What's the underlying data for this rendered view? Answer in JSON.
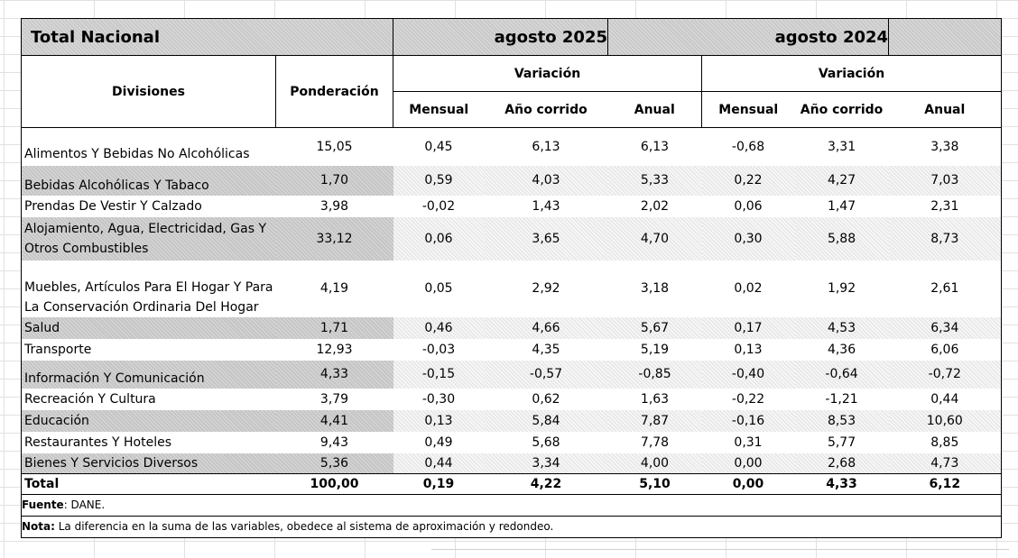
{
  "banner": {
    "title": "Total Nacional",
    "period_current": "agosto  2025",
    "period_previous": "agosto   2024"
  },
  "headers": {
    "divisions": "Divisiones",
    "weight": "Ponderación",
    "variation_current": "Variación",
    "variation_previous": "Variación",
    "monthly": "Mensual",
    "year_to_date": "Año corrido",
    "annual": "Anual"
  },
  "rows": [
    {
      "label": "Alimentos Y Bebidas No Alcohólicas",
      "weight": "15,05",
      "m25": "0,45",
      "ac25": "6,13",
      "a25": "6,13",
      "m24": "-0,68",
      "ac24": "3,31",
      "a24": "3,38"
    },
    {
      "label": "Bebidas Alcohólicas Y Tabaco",
      "weight": "1,70",
      "m25": "0,59",
      "ac25": "4,03",
      "a25": "5,33",
      "m24": "0,22",
      "ac24": "4,27",
      "a24": "7,03"
    },
    {
      "label": "Prendas De Vestir Y Calzado",
      "weight": "3,98",
      "m25": "-0,02",
      "ac25": "1,43",
      "a25": "2,02",
      "m24": "0,06",
      "ac24": "1,47",
      "a24": "2,31"
    },
    {
      "label_line1": "Alojamiento, Agua, Electricidad, Gas Y",
      "label_line2": "Otros Combustibles",
      "weight": "33,12",
      "m25": "0,06",
      "ac25": "3,65",
      "a25": "4,70",
      "m24": "0,30",
      "ac24": "5,88",
      "a24": "8,73"
    },
    {
      "label_line1": "Muebles, Artículos Para El Hogar Y Para",
      "label_line2": "La Conservación Ordinaria Del Hogar",
      "weight": "4,19",
      "m25": "0,05",
      "ac25": "2,92",
      "a25": "3,18",
      "m24": "0,02",
      "ac24": "1,92",
      "a24": "2,61"
    },
    {
      "label": "Salud",
      "weight": "1,71",
      "m25": "0,46",
      "ac25": "4,66",
      "a25": "5,67",
      "m24": "0,17",
      "ac24": "4,53",
      "a24": "6,34"
    },
    {
      "label": "Transporte",
      "weight": "12,93",
      "m25": "-0,03",
      "ac25": "4,35",
      "a25": "5,19",
      "m24": "0,13",
      "ac24": "4,36",
      "a24": "6,06"
    },
    {
      "label": "Información Y Comunicación",
      "weight": "4,33",
      "m25": "-0,15",
      "ac25": "-0,57",
      "a25": "-0,85",
      "m24": "-0,40",
      "ac24": "-0,64",
      "a24": "-0,72"
    },
    {
      "label": "Recreación Y Cultura",
      "weight": "3,79",
      "m25": "-0,30",
      "ac25": "0,62",
      "a25": "1,63",
      "m24": "-0,22",
      "ac24": "-1,21",
      "a24": "0,44"
    },
    {
      "label": "Educación",
      "weight": "4,41",
      "m25": "0,13",
      "ac25": "5,84",
      "a25": "7,87",
      "m24": "-0,16",
      "ac24": "8,53",
      "a24": "10,60"
    },
    {
      "label": "Restaurantes Y Hoteles",
      "weight": "9,43",
      "m25": "0,49",
      "ac25": "5,68",
      "a25": "7,78",
      "m24": "0,31",
      "ac24": "5,77",
      "a24": "8,85"
    },
    {
      "label": "Bienes Y Servicios Diversos",
      "weight": "5,36",
      "m25": "0,44",
      "ac25": "3,34",
      "a25": "4,00",
      "m24": "0,00",
      "ac24": "2,68",
      "a24": "4,73"
    }
  ],
  "total": {
    "label": "Total",
    "weight": "100,00",
    "m25": "0,19",
    "ac25": "4,22",
    "a25": "5,10",
    "m24": "0,00",
    "ac24": "4,33",
    "a24": "6,12"
  },
  "source": {
    "label": "Fuente",
    "text": ": DANE."
  },
  "note": {
    "label": "Nota:",
    "text": " La diferencia en la suma de las variables, obedece al sistema de aproximación y redondeo."
  }
}
